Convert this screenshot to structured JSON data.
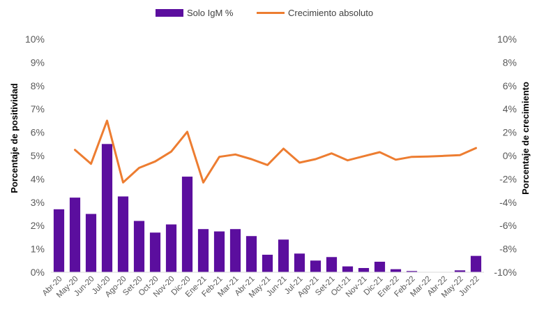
{
  "chart_data": {
    "type": "bar+line",
    "categories": [
      "Abr-20",
      "May-20",
      "Jun-20",
      "Jul-20",
      "Ago-20",
      "Set-20",
      "Oct-20",
      "Nov-20",
      "Dic-20",
      "Ene-21",
      "Feb-21",
      "Mar-21",
      "Abr-21",
      "May-21",
      "Jun-21",
      "Jul-21",
      "Ago-21",
      "Set-21",
      "Oct-21",
      "Nov-21",
      "Dic-21",
      "Ene-22",
      "Feb-22",
      "Mar-22",
      "Abr-22",
      "May-22",
      "Jun-22"
    ],
    "series": [
      {
        "name": "Solo IgM %",
        "type": "bar",
        "axis": "left",
        "color": "#5B0E9E",
        "values": [
          2.7,
          3.2,
          2.5,
          5.5,
          3.25,
          2.2,
          1.7,
          2.05,
          4.1,
          1.85,
          1.75,
          1.85,
          1.55,
          0.75,
          1.4,
          0.8,
          0.5,
          0.65,
          0.25,
          0.18,
          0.45,
          0.13,
          0.05,
          0.0,
          0.0,
          0.08,
          0.7
        ]
      },
      {
        "name": "Crecimiento absoluto",
        "type": "line",
        "axis": "right",
        "color": "#ED7D31",
        "values": [
          null,
          0.5,
          -0.7,
          3.0,
          -2.3,
          -1.05,
          -0.5,
          0.35,
          2.05,
          -2.3,
          -0.1,
          0.1,
          -0.3,
          -0.8,
          0.6,
          -0.6,
          -0.3,
          0.2,
          -0.4,
          -0.05,
          0.3,
          -0.35,
          -0.1,
          -0.07,
          -0.02,
          0.05,
          0.65
        ]
      }
    ],
    "ylabel_left": "Porcentaje de positividad",
    "ylabel_right": "Porcentaje de crecimiento",
    "ylim_left": [
      0,
      10
    ],
    "ylim_right": [
      -10,
      10
    ],
    "yticks_left": [
      "0%",
      "1%",
      "2%",
      "3%",
      "4%",
      "5%",
      "6%",
      "7%",
      "8%",
      "9%",
      "10%"
    ],
    "yticks_right": [
      "-10%",
      "-8%",
      "-6%",
      "-4%",
      "-2%",
      "0%",
      "2%",
      "4%",
      "6%",
      "8%",
      "10%"
    ],
    "legend": [
      "Solo IgM %",
      "Crecimiento absoluto"
    ],
    "legend_position": "top",
    "grid": false
  }
}
